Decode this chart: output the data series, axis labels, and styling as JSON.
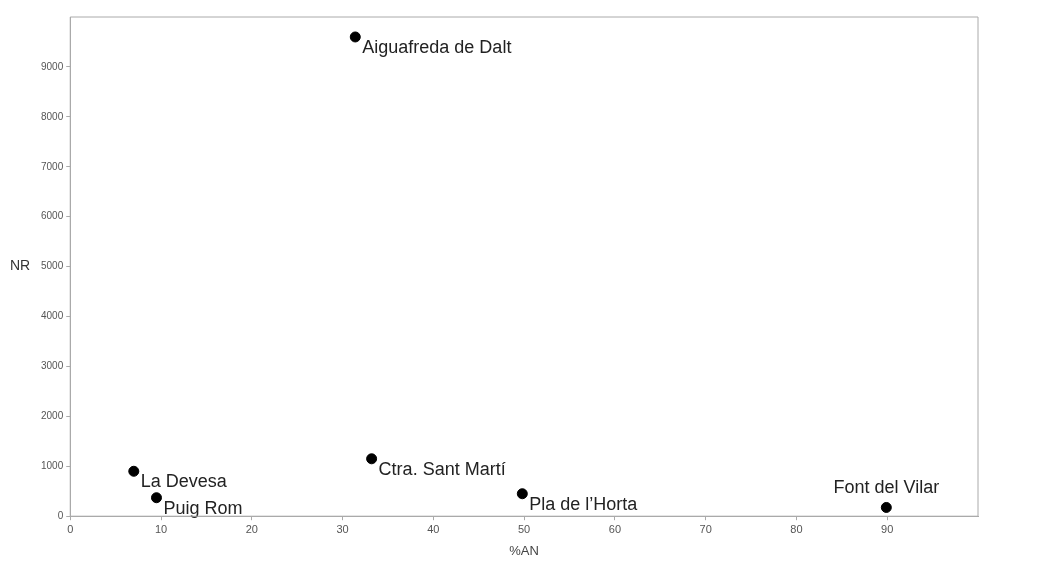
{
  "chart_data": {
    "type": "scatter",
    "xlabel": "%AN",
    "ylabel": "NR",
    "x": [
      31.4,
      7.0,
      9.5,
      33.2,
      49.8,
      89.9
    ],
    "series": [
      {
        "color": "#000000",
        "values": [
          9600,
          900,
          370,
          1150,
          450,
          175
        ]
      }
    ],
    "xlim": [
      0,
      100
    ],
    "xticks": [
      0,
      10,
      20,
      30,
      40,
      50,
      60,
      70,
      80,
      90
    ],
    "ylim": [
      0,
      10000
    ],
    "yticks": [
      0,
      1000,
      2000,
      3000,
      4000,
      5000,
      6000,
      7000,
      8000,
      9000
    ],
    "grid": false,
    "legend": false,
    "marker": "circle",
    "annotations": [
      {
        "text": "Aiguafreda de Dalt",
        "x": 31.4,
        "y": 9600
      },
      {
        "text": "La Devesa",
        "x": 7.0,
        "y": 900
      },
      {
        "text": "Puig Rom",
        "x": 9.5,
        "y": 370
      },
      {
        "text": "Ctra. Sant Martí",
        "x": 33.2,
        "y": 1150
      },
      {
        "text": "Pla de l’Horta",
        "x": 49.8,
        "y": 450
      },
      {
        "text": "Font del Vilar",
        "x": 89.9,
        "y": 175
      }
    ]
  }
}
